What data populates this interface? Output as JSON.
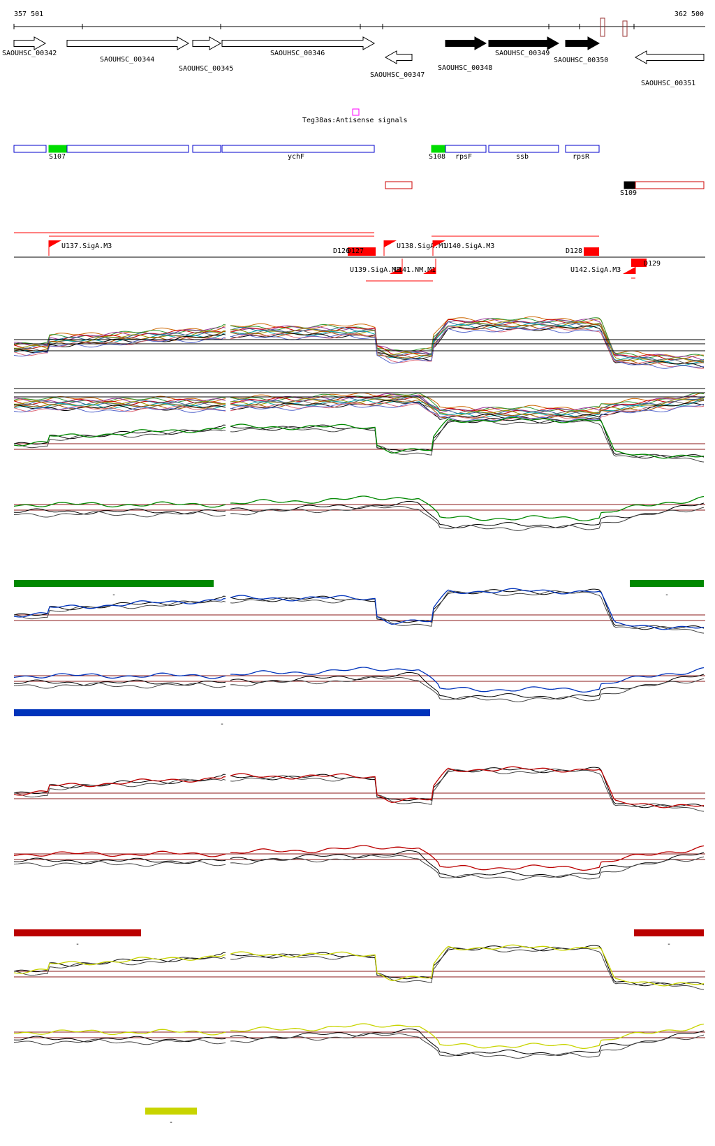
{
  "coords": {
    "start": "357 501",
    "end": "362 500"
  },
  "colors": {
    "gene_outline": "#000000",
    "gene_fill_forward": "#000000",
    "segment_outline": "#0000cc",
    "segment_green": "#00dd00",
    "segment_black": "#000000",
    "antisense_box": "#cc0000",
    "magenta_box": "#ff00ff",
    "tss_red": "#ff0000",
    "threshold_line": "#8b1a1a",
    "condition_green": "#008800",
    "condition_blue": "#0033bb",
    "condition_red": "#bb0000",
    "condition_yellow": "#c8d400"
  },
  "genes": [
    {
      "label": "SAOUHSC_00342",
      "strand": "+",
      "filled": false
    },
    {
      "label": "SAOUHSC_00344",
      "strand": "+",
      "filled": false
    },
    {
      "label": "SAOUHSC_00345",
      "strand": "+",
      "filled": false
    },
    {
      "label": "SAOUHSC_00346",
      "strand": "+",
      "filled": false
    },
    {
      "label": "SAOUHSC_00347",
      "strand": "-",
      "filled": false
    },
    {
      "label": "SAOUHSC_00348",
      "strand": "+",
      "filled": true
    },
    {
      "label": "SAOUHSC_00349",
      "strand": "+",
      "filled": true
    },
    {
      "label": "SAOUHSC_00350",
      "strand": "+",
      "filled": true
    },
    {
      "label": "SAOUHSC_00351",
      "strand": "-",
      "filled": false
    }
  ],
  "antisense_signal": {
    "label": "Teg38as:Antisense signals"
  },
  "segments": [
    {
      "label": "",
      "kind": "segment"
    },
    {
      "label": "S107",
      "kind": "start-green"
    },
    {
      "label": "",
      "kind": "segment"
    },
    {
      "label": "",
      "kind": "segment"
    },
    {
      "label": "ychF",
      "kind": "segment"
    },
    {
      "label": "S108",
      "kind": "start-green"
    },
    {
      "label": "rpsF",
      "kind": "segment"
    },
    {
      "label": "ssb",
      "kind": "segment"
    },
    {
      "label": "rpsR",
      "kind": "segment"
    },
    {
      "label": "S109",
      "kind": "start-black"
    }
  ],
  "promoters": [
    {
      "label": "U137.SigA.M3",
      "strand": "+"
    },
    {
      "label": "U138.SigA.M1",
      "strand": "+"
    },
    {
      "label": "U140.SigA.M3",
      "strand": "+"
    },
    {
      "label": "U139.SigA.M3",
      "strand": "-"
    },
    {
      "label": "U141.NM.M1",
      "strand": "-"
    },
    {
      "label": "U142.SigA.M3",
      "strand": "-"
    },
    {
      "label": "D126",
      "strand": "+"
    },
    {
      "label": "D127",
      "strand": "+"
    },
    {
      "label": "D128",
      "strand": "+"
    },
    {
      "label": "D129",
      "strand": "-"
    }
  ],
  "conditions": [
    {
      "color": "#008800",
      "bars": [
        {
          "label": "-"
        },
        {
          "label": "-"
        }
      ]
    },
    {
      "color": "#0033bb",
      "bars": [
        {
          "label": "-"
        }
      ]
    },
    {
      "color": "#bb0000",
      "bars": [
        {
          "label": "-"
        },
        {
          "label": "-"
        }
      ]
    },
    {
      "color": "#c8d400",
      "bars": [
        {
          "label": "-"
        }
      ]
    }
  ]
}
